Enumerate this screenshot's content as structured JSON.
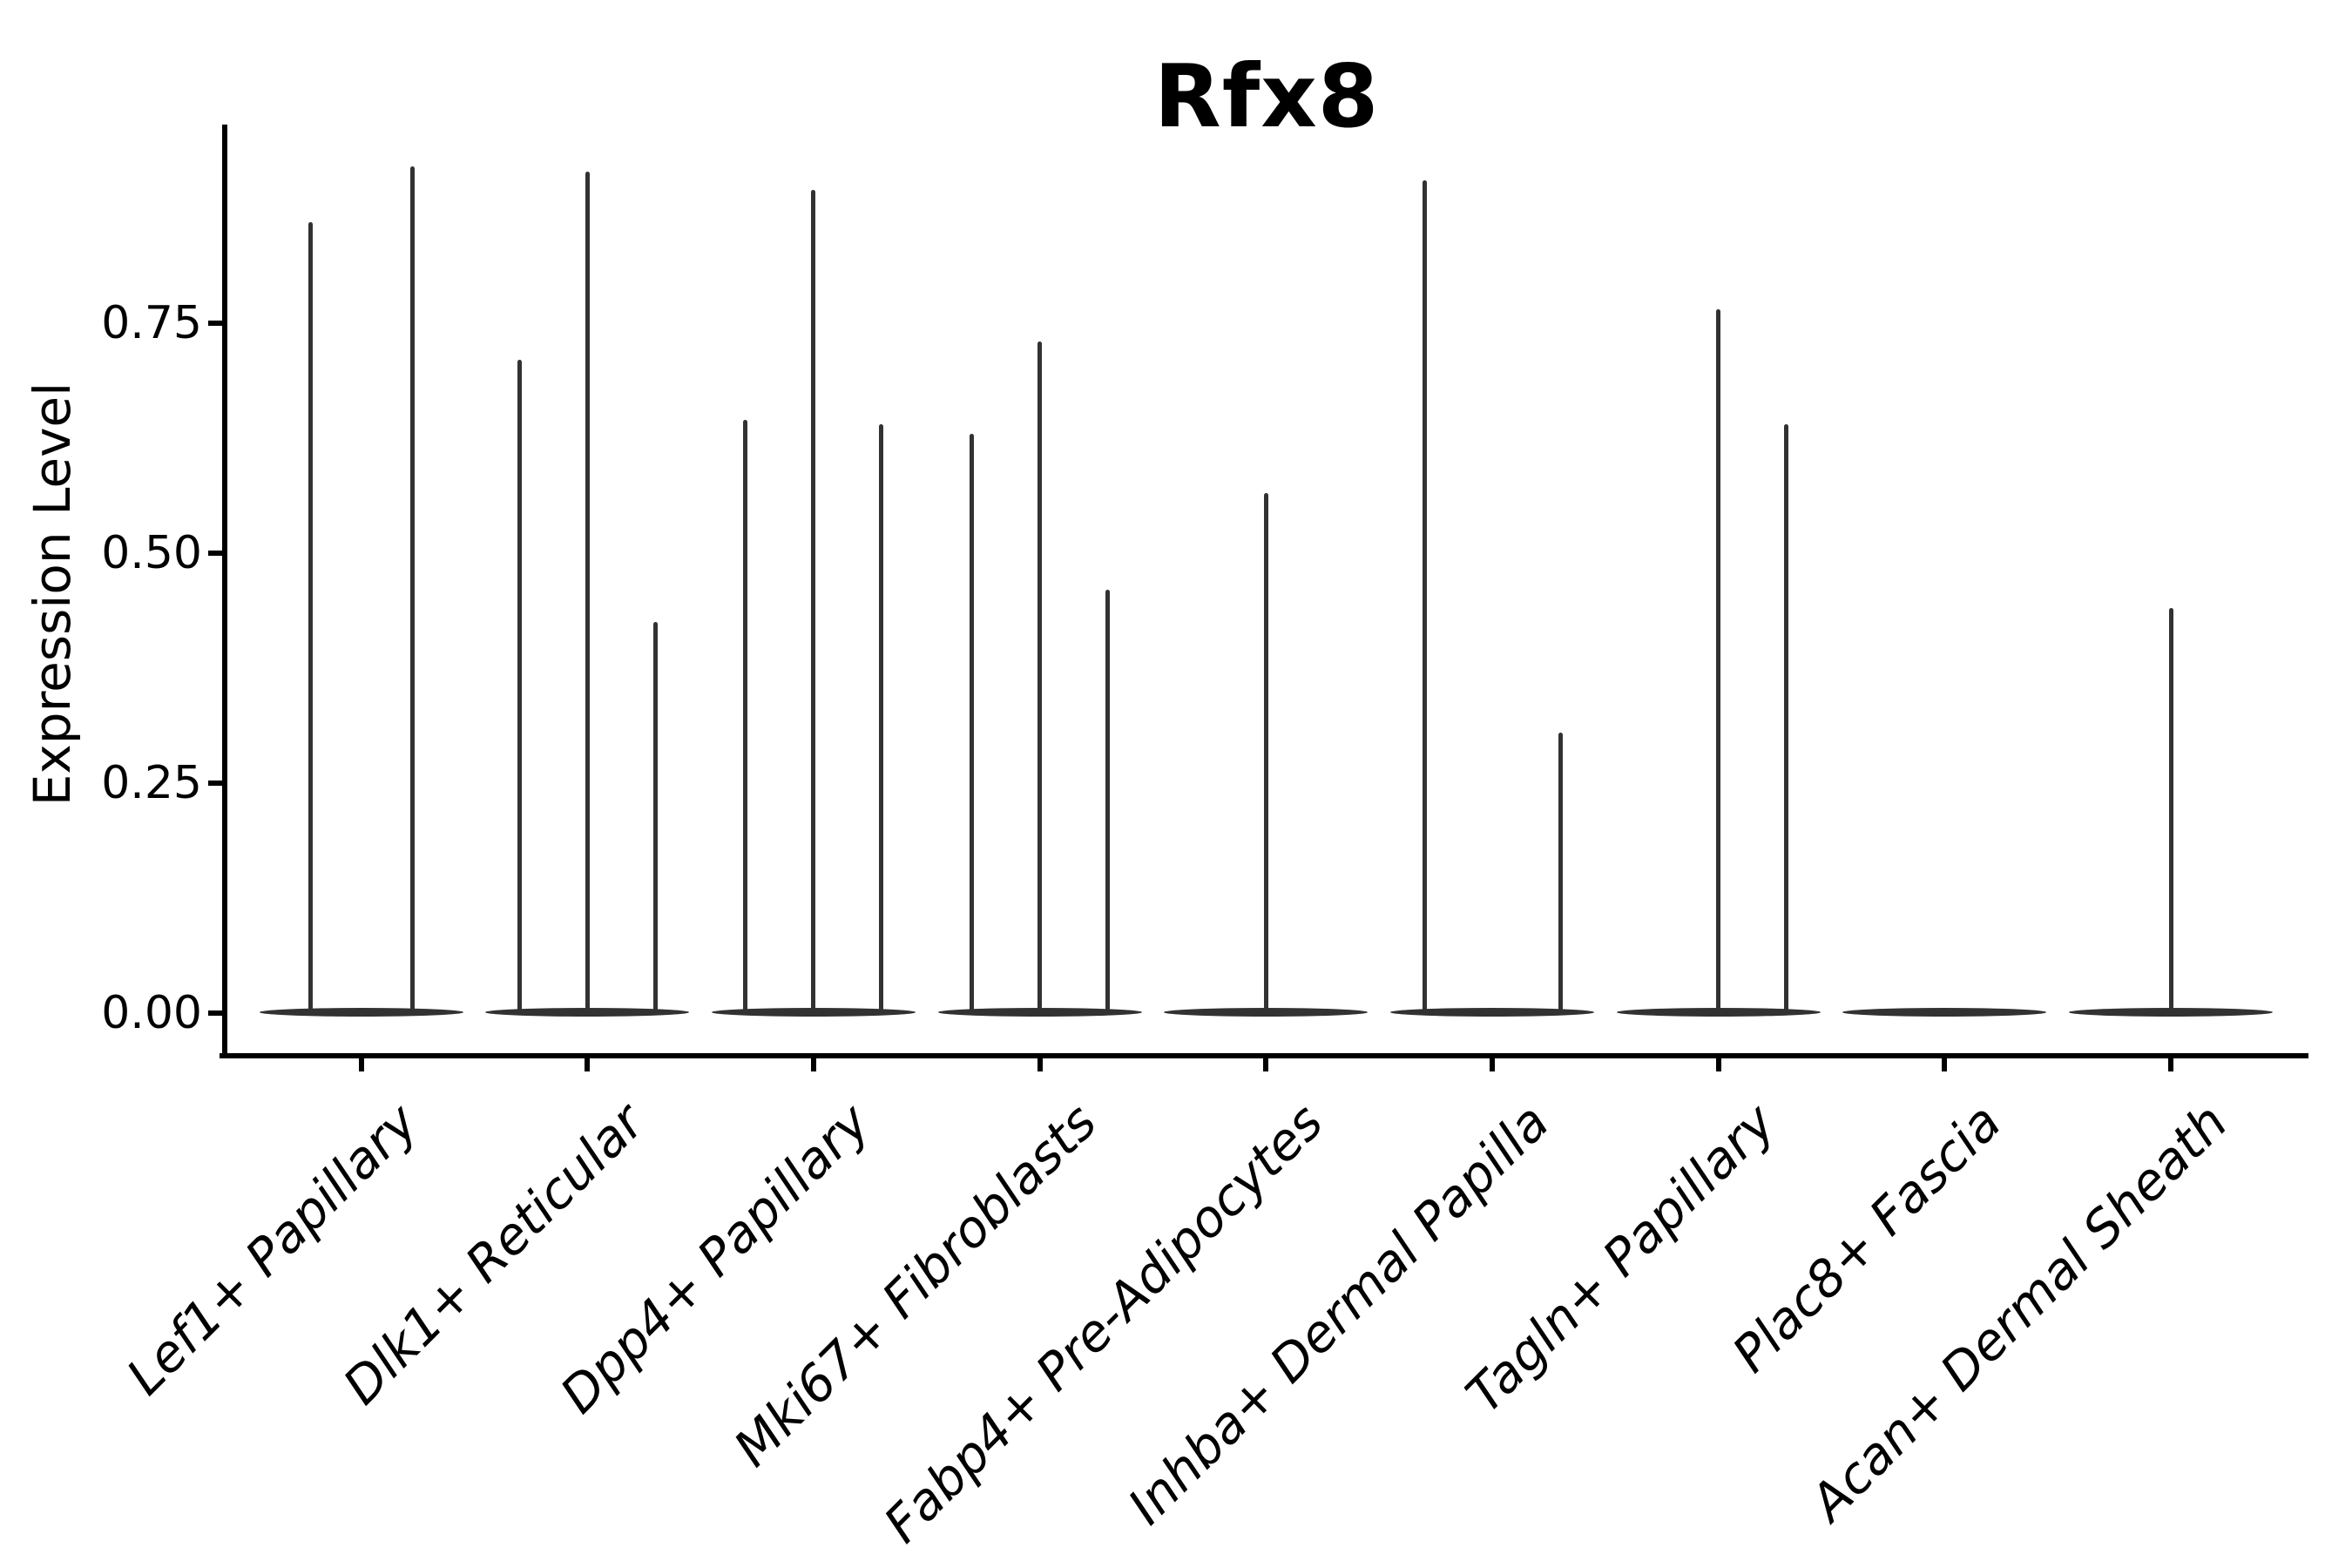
{
  "chart_data": {
    "type": "violin",
    "title": "Rfx8",
    "ylabel": "Expression Level",
    "xlabel": "",
    "grid": false,
    "legend": "none",
    "ylim": [
      -0.043,
      0.966
    ],
    "yticks": [
      0.0,
      0.25,
      0.5,
      0.75
    ],
    "ytick_labels": [
      "0.00",
      "0.25",
      "0.50",
      "0.75"
    ],
    "categories": [
      "Lef1+ Papillary",
      "Dlk1+ Reticular",
      "Dpp4+ Papillary",
      "Mki67+ Fibroblasts",
      "Fabp4+ Pre-Adipocytes",
      "Inhba+ Dermal Papilla",
      "Tagln+ Papillary",
      "Plac8+ Fascia",
      "Acan+ Dermal Sheath"
    ],
    "description": "Each category shows a flat violin base at expression 0 with thin sub-violin spikes rising to the maximum expression of each sub-violin; zero entries mean a sub-violin with no spike.",
    "violin_spike_maxima": [
      [
        0.86,
        0.92
      ],
      [
        0.71,
        0.915,
        0.425
      ],
      [
        0.645,
        0.895,
        0.64
      ],
      [
        0.63,
        0.73,
        0.46
      ],
      [
        0.565
      ],
      [
        0.905,
        0,
        0.305
      ],
      [
        0,
        0.765,
        0.64
      ],
      [
        0
      ],
      [
        0.44
      ]
    ],
    "colors": {
      "violin": "#323232",
      "axis": "#000000",
      "text": "#000000",
      "background": "#ffffff"
    }
  }
}
